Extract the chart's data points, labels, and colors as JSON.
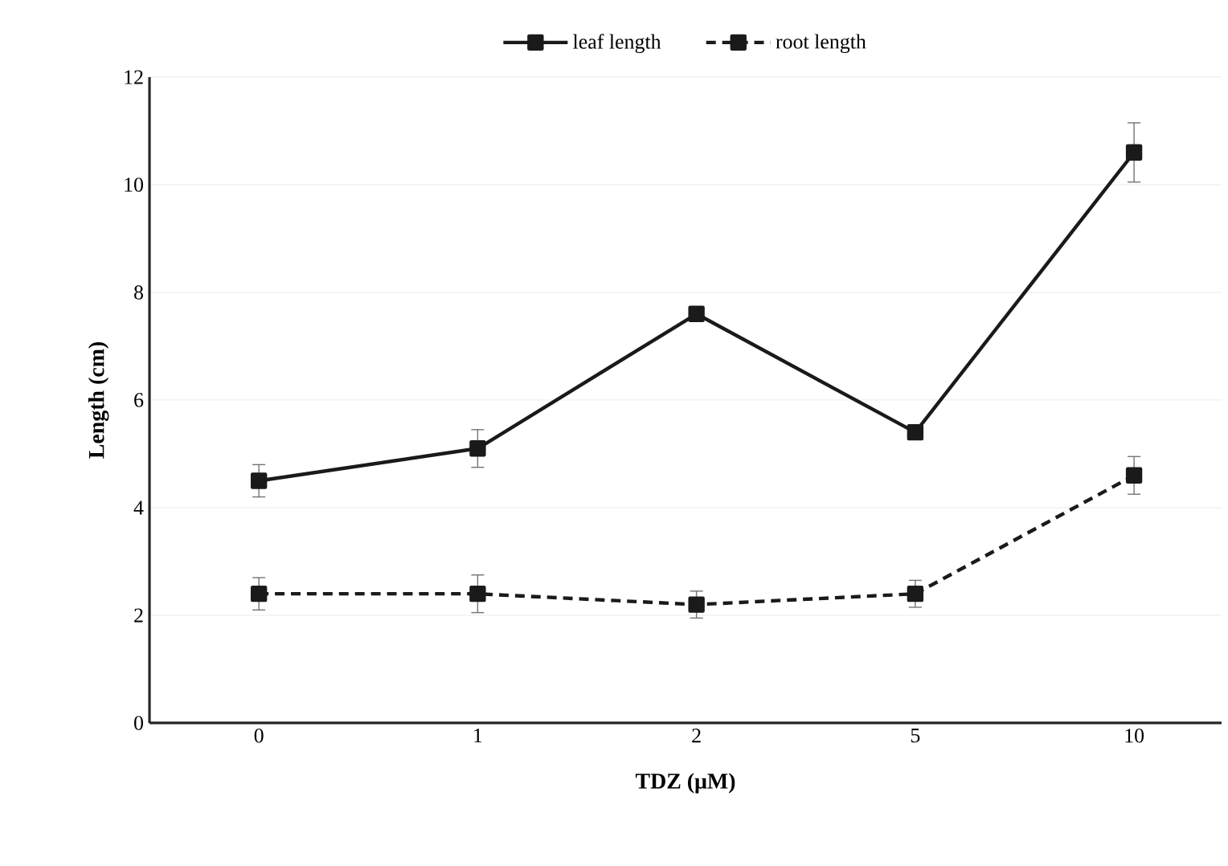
{
  "chart_data": {
    "type": "line",
    "xlabel": "TDZ (μM)",
    "ylabel": "Length (cm)",
    "categories": [
      "0",
      "1",
      "2",
      "5",
      "10"
    ],
    "series": [
      {
        "name": "leaf length",
        "color": "#1a1a1a",
        "line_style": "solid",
        "values": [
          4.5,
          5.1,
          7.6,
          5.4,
          10.6
        ],
        "errors": [
          0.3,
          0.35,
          0.1,
          0.1,
          0.55
        ]
      },
      {
        "name": "root length",
        "color": "#1a1a1a",
        "line_style": "dashed",
        "values": [
          2.4,
          2.4,
          2.2,
          2.4,
          4.6
        ],
        "errors": [
          0.3,
          0.35,
          0.25,
          0.25,
          0.35
        ]
      }
    ],
    "ylim": [
      0,
      12
    ],
    "yticks": [
      0,
      2,
      4,
      6,
      8,
      10,
      12
    ],
    "grid": "y",
    "legend": "top",
    "marker": "square"
  }
}
